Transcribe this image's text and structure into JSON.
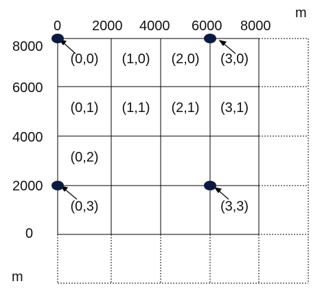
{
  "units": {
    "top": "m",
    "left": "m"
  },
  "x_axis": {
    "ticks": [
      "0",
      "2000",
      "4000",
      "6000",
      "8000"
    ]
  },
  "y_axis": {
    "ticks": [
      "8000",
      "6000",
      "4000",
      "2000",
      "0"
    ]
  },
  "cells": [
    {
      "label": "(0,0)",
      "col": 0,
      "row": 0
    },
    {
      "label": "(1,0)",
      "col": 1,
      "row": 0
    },
    {
      "label": "(2,0)",
      "col": 2,
      "row": 0
    },
    {
      "label": "(3,0)",
      "col": 3,
      "row": 0
    },
    {
      "label": "(0,1)",
      "col": 0,
      "row": 1
    },
    {
      "label": "(1,1)",
      "col": 1,
      "row": 1
    },
    {
      "label": "(2,1)",
      "col": 2,
      "row": 1
    },
    {
      "label": "(3,1)",
      "col": 3,
      "row": 1
    },
    {
      "label": "(0,2)",
      "col": 0,
      "row": 2
    },
    {
      "label": "(0,3)",
      "col": 0,
      "row": 3
    },
    {
      "label": "(3,3)",
      "col": 3,
      "row": 3
    }
  ],
  "points": [
    {
      "name": "point-0-8000",
      "x": 0,
      "y": 8000
    },
    {
      "name": "point-6000-8000",
      "x": 6000,
      "y": 8000
    },
    {
      "name": "point-0-2000",
      "x": 0,
      "y": 2000
    },
    {
      "name": "point-6000-2000",
      "x": 6000,
      "y": 2000
    }
  ],
  "colors": {
    "point": "#0d1a40",
    "line": "#000000"
  }
}
